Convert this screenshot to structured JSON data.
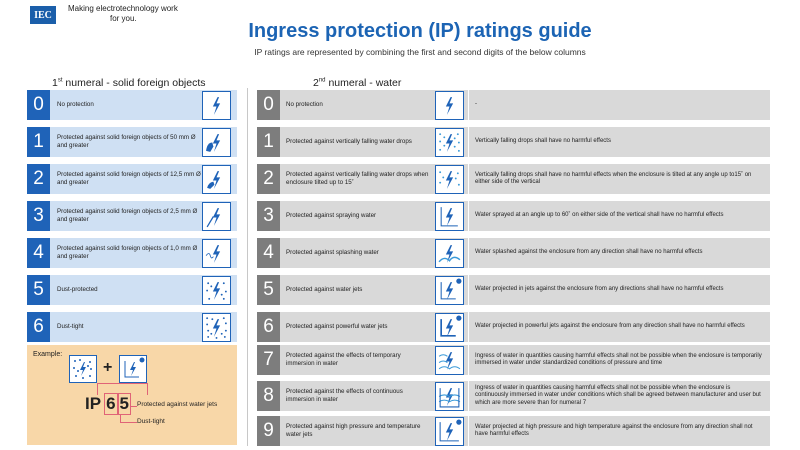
{
  "header": {
    "logo_text": "IEC",
    "tagline_line1": "Making electrotechnology work",
    "tagline_line2": "for you.",
    "title": "Ingress protection (IP) ratings guide",
    "subtitle": "IP ratings are represented by combining the first and second digits of the below columns"
  },
  "left_column": {
    "heading_prefix": "1",
    "heading_sup": "st",
    "heading_rest": " numeral - solid foreign objects",
    "rows": [
      {
        "num": "0",
        "text": "No protection",
        "icon": "lightning-icon"
      },
      {
        "num": "1",
        "text": "Protected against solid foreign objects of 50 mm Ø and greater",
        "icon": "hand-icon"
      },
      {
        "num": "2",
        "text": "Protected against solid foreign objects of 12,5 mm Ø and greater",
        "icon": "finger-icon"
      },
      {
        "num": "3",
        "text": "Protected against solid foreign objects of 2,5 mm Ø and greater",
        "icon": "tool-icon"
      },
      {
        "num": "4",
        "text": "Protected against solid foreign objects of 1,0 mm Ø and greater",
        "icon": "wire-icon"
      },
      {
        "num": "5",
        "text": "Dust-protected",
        "icon": "dust-icon"
      },
      {
        "num": "6",
        "text": "Dust-tight",
        "icon": "dust-tight-icon"
      }
    ]
  },
  "right_column": {
    "heading_prefix": "2",
    "heading_sup": "nd",
    "heading_rest": " numeral - water",
    "rows": [
      {
        "num": "0",
        "text": "No protection",
        "desc": "-",
        "icon": "lightning-icon"
      },
      {
        "num": "1",
        "text": "Protected against vertically falling water drops",
        "desc": "Vertically falling drops shall have no harmful effects",
        "icon": "drops-icon"
      },
      {
        "num": "2",
        "text": "Protected against vertically falling water drops when enclosure tilted up to 15˚",
        "desc": "Vertically falling drops shall have no harmful effects when the enclosure is tilted at any angle up to15˚ on either side of the vertical",
        "icon": "tilted-drops-icon"
      },
      {
        "num": "3",
        "text": "Protected against spraying water",
        "desc": "Water sprayed at an angle up to 60˚ on either side of the vertical shall have no harmful effects",
        "icon": "spray-icon"
      },
      {
        "num": "4",
        "text": "Protected against splashing water",
        "desc": "Water splashed against the enclosure from any direction shall have no harmful effects",
        "icon": "splash-icon"
      },
      {
        "num": "5",
        "text": "Protected against water jets",
        "desc": "Water projected in jets against the enclosure from any directions shall have no harmful effects",
        "icon": "jet-icon"
      },
      {
        "num": "6",
        "text": "Protected against powerful water jets",
        "desc": "Water projected in powerful jets against the enclosure from any direction shall have no harmful effects",
        "icon": "powerful-jet-icon"
      },
      {
        "num": "7",
        "text": "Protected against the effects of temporary immersion in water",
        "desc": "Ingress of water in quantities causing harmful effects shall not be possible when the enclosure is temporarily immersed in water under standardized conditions of pressure and time",
        "icon": "immersion-icon"
      },
      {
        "num": "8",
        "text": "Protected against the effects of continuous immersion in water",
        "desc": "Ingress of water in quantities causing harmful effects shall not be possible when the enclosure is continuously immersed in water under conditions which shall be agreed between manufacturer and user but which are more severe than for numeral 7",
        "icon": "continuous-immersion-icon"
      },
      {
        "num": "9",
        "text": "Protected against high pressure and temperature water jets",
        "desc": "Water projected at high pressure and high temperature against the enclosure from any direction shall not have harmful effects",
        "icon": "high-pressure-jet-icon"
      }
    ]
  },
  "example": {
    "label": "Example:",
    "plus": "+",
    "ip_prefix": "IP",
    "digit1": "6",
    "digit2": "5",
    "note_water": "Protected against water jets",
    "note_dust": "Dust-tight"
  },
  "colors": {
    "blue": "#1f63b8",
    "light_blue": "#cfe0f3",
    "grey": "#7d7d7d",
    "light_grey": "#d9d9d9",
    "example_bg": "#f8d7a8",
    "pink": "#e06377"
  }
}
